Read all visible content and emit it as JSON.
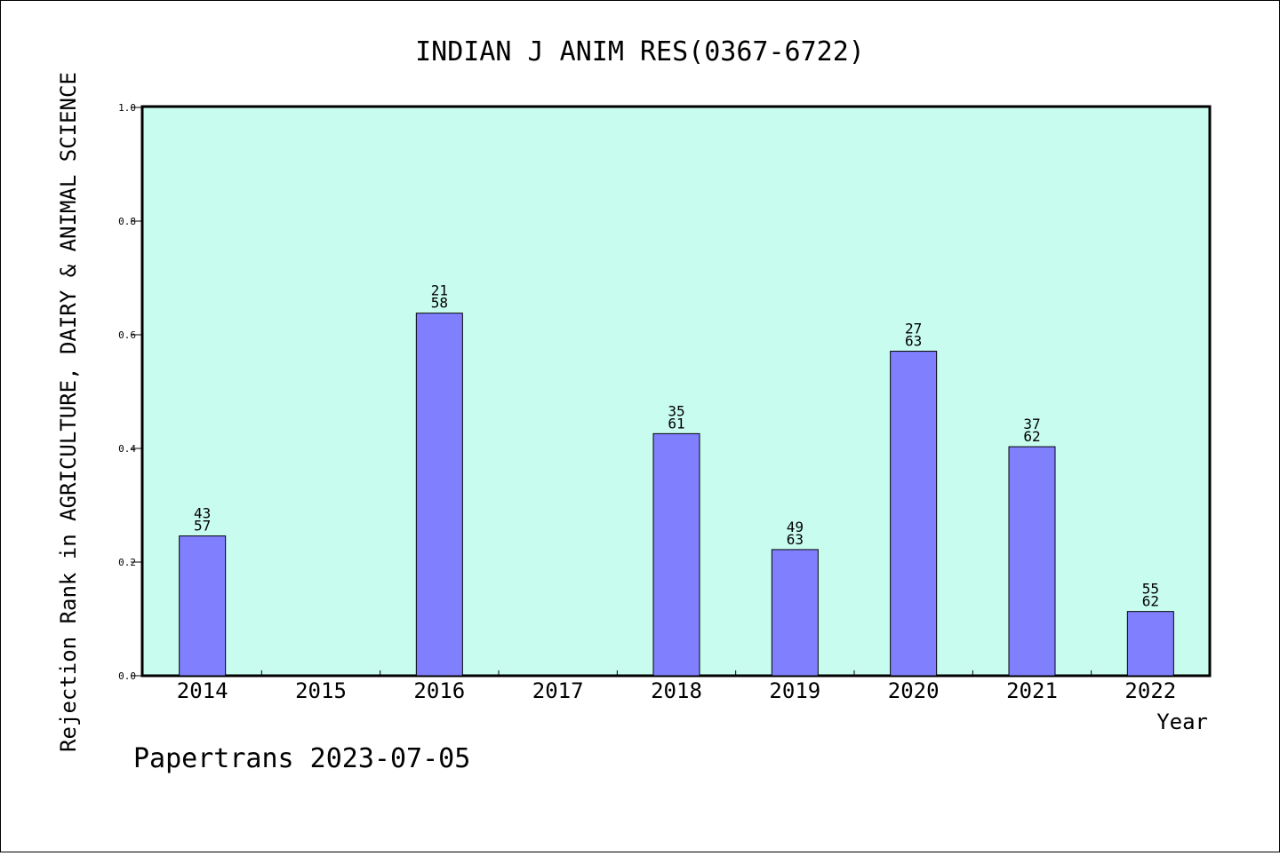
{
  "chart_data": {
    "type": "bar",
    "title": "INDIAN J ANIM RES(0367-6722)",
    "xlabel": "Year",
    "ylabel": "Rejection Rank in AGRICULTURE, DAIRY & ANIMAL SCIENCE",
    "footer": "Papertrans 2023-07-05",
    "categories": [
      "2014",
      "2015",
      "2016",
      "2017",
      "2018",
      "2019",
      "2020",
      "2021",
      "2022"
    ],
    "values": [
      0.246,
      null,
      0.638,
      null,
      0.426,
      0.222,
      0.571,
      0.403,
      0.113
    ],
    "labels": [
      [
        "43",
        "57"
      ],
      null,
      [
        "21",
        "58"
      ],
      null,
      [
        "35",
        "61"
      ],
      [
        "49",
        "63"
      ],
      [
        "27",
        "63"
      ],
      [
        "37",
        "62"
      ],
      [
        "55",
        "62"
      ]
    ],
    "ylim": [
      0,
      1.0
    ],
    "yticks": [
      "0.0",
      "0.2",
      "0.4",
      "0.6",
      "0.8",
      "1.0"
    ],
    "colors": {
      "plot_bg": "#c8fcee",
      "bar": "#8080ff",
      "bar_edge": "#000000"
    },
    "grid": false,
    "legend": "none"
  }
}
